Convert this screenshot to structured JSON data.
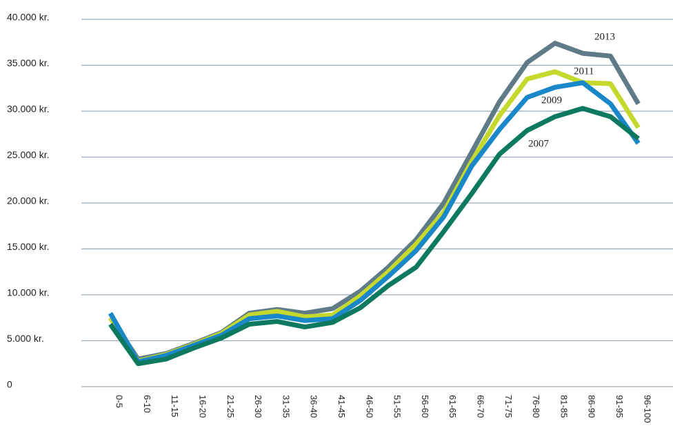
{
  "chart_data": {
    "type": "line",
    "categories": [
      "0-5",
      "6-10",
      "11-15",
      "16-20",
      "21-25",
      "26-30",
      "31-35",
      "36-40",
      "41-45",
      "46-50",
      "51-55",
      "56-60",
      "61-65",
      "66-70",
      "71-75",
      "76-80",
      "81-85",
      "86-90",
      "91-95",
      "96-100"
    ],
    "series": [
      {
        "name": "2013",
        "color": "#5f7b87",
        "values": [
          7500,
          3000,
          3600,
          4700,
          5900,
          8000,
          8400,
          8000,
          8500,
          10400,
          13000,
          16000,
          20000,
          25500,
          31000,
          35300,
          37400,
          36300,
          36000,
          30800
        ]
      },
      {
        "name": "2011",
        "color": "#c5d82e",
        "values": [
          7500,
          2800,
          3500,
          4600,
          5800,
          7800,
          8200,
          7600,
          7800,
          9900,
          12500,
          15500,
          19000,
          24500,
          29500,
          33500,
          34300,
          33100,
          33000,
          28200
        ]
      },
      {
        "name": "2009",
        "color": "#1a87c8",
        "values": [
          8000,
          2700,
          3400,
          4500,
          5600,
          7400,
          7700,
          7200,
          7400,
          9400,
          12000,
          14800,
          18500,
          24000,
          28000,
          31500,
          32600,
          33100,
          30800,
          26500
        ]
      },
      {
        "name": "2007",
        "color": "#0d7a5f",
        "values": [
          6800,
          2500,
          3000,
          4200,
          5300,
          6800,
          7100,
          6500,
          7000,
          8600,
          11000,
          13000,
          16900,
          21000,
          25300,
          27900,
          29400,
          30300,
          29400,
          27000
        ]
      }
    ],
    "ylim": [
      0,
      40000
    ],
    "yticks": [
      0,
      {
        "value": 5000,
        "label": "5.000 kr."
      },
      {
        "value": 10000,
        "label": "10.000 kr."
      },
      {
        "value": 15000,
        "label": "15.000 kr."
      },
      {
        "value": 20000,
        "label": "20.000 kr."
      },
      {
        "value": 25000,
        "label": "25.000 kr."
      },
      {
        "value": 30000,
        "label": "30.000 kr."
      },
      {
        "value": 35000,
        "label": "35.000 kr."
      },
      {
        "value": 40000,
        "label": "40.000 kr."
      }
    ],
    "grid": true
  }
}
